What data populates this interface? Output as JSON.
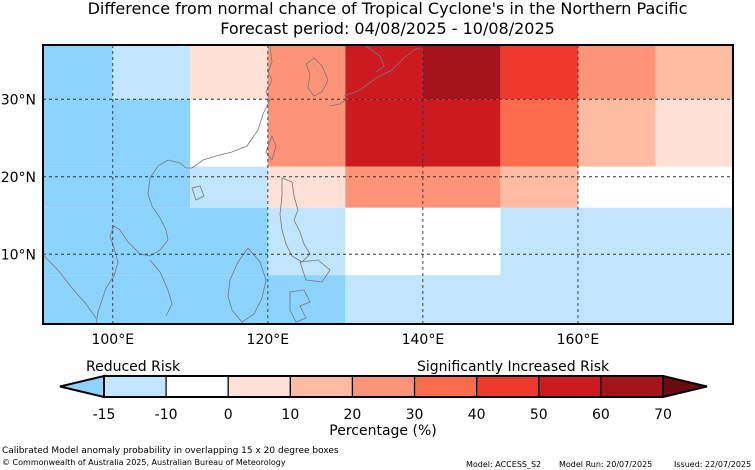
{
  "title": {
    "line1": "Difference from normal chance of Tropical Cyclone's in the Northern Pacific",
    "line2": "Forecast period: 04/08/2025 - 10/08/2025"
  },
  "map": {
    "lat_ticks": [
      "30°N",
      "20°N",
      "10°N"
    ],
    "lon_ticks": [
      "100°E",
      "120°E",
      "140°E",
      "160°E"
    ],
    "grid_cells": [
      {
        "lon": [
          90,
          100
        ],
        "lat": [
          30,
          37
        ],
        "color": "#8dd3ff"
      },
      {
        "lon": [
          100,
          110
        ],
        "lat": [
          30,
          37
        ],
        "color": "#c0e5fc"
      },
      {
        "lon": [
          110,
          120
        ],
        "lat": [
          30,
          37
        ],
        "color": "#ffe0d6"
      },
      {
        "lon": [
          120,
          130
        ],
        "lat": [
          30,
          37
        ],
        "color": "#fd9377"
      },
      {
        "lon": [
          130,
          140
        ],
        "lat": [
          30,
          37
        ],
        "color": "#cc1a20"
      },
      {
        "lon": [
          140,
          150
        ],
        "lat": [
          30,
          37
        ],
        "color": "#a5141a"
      },
      {
        "lon": [
          150,
          160
        ],
        "lat": [
          30,
          37
        ],
        "color": "#ee3a2c"
      },
      {
        "lon": [
          160,
          170
        ],
        "lat": [
          30,
          37
        ],
        "color": "#fd9377"
      },
      {
        "lon": [
          170,
          180
        ],
        "lat": [
          30,
          37
        ],
        "color": "#fdbba1"
      },
      {
        "lon": [
          90,
          110
        ],
        "lat": [
          21.3,
          30
        ],
        "color": "#8dd3ff"
      },
      {
        "lon": [
          110,
          120
        ],
        "lat": [
          21.3,
          30
        ],
        "color": "#ffffff"
      },
      {
        "lon": [
          120,
          130
        ],
        "lat": [
          21.3,
          30
        ],
        "color": "#fd9377"
      },
      {
        "lon": [
          130,
          150
        ],
        "lat": [
          21.3,
          30
        ],
        "color": "#cc1a20"
      },
      {
        "lon": [
          150,
          160
        ],
        "lat": [
          21.3,
          30
        ],
        "color": "#fd6b4d"
      },
      {
        "lon": [
          160,
          170
        ],
        "lat": [
          21.3,
          30
        ],
        "color": "#fdbba1"
      },
      {
        "lon": [
          170,
          180
        ],
        "lat": [
          21.3,
          30
        ],
        "color": "#ffe0d6"
      },
      {
        "lon": [
          90,
          110
        ],
        "lat": [
          16,
          21.3
        ],
        "color": "#8dd3ff"
      },
      {
        "lon": [
          110,
          120
        ],
        "lat": [
          16,
          21.3
        ],
        "color": "#c0e5fc"
      },
      {
        "lon": [
          120,
          130
        ],
        "lat": [
          16,
          21.3
        ],
        "color": "#ffe0d6"
      },
      {
        "lon": [
          130,
          150
        ],
        "lat": [
          16,
          21.3
        ],
        "color": "#fd9377"
      },
      {
        "lon": [
          150,
          160
        ],
        "lat": [
          16,
          21.3
        ],
        "color": "#fdbba1"
      },
      {
        "lon": [
          160,
          180
        ],
        "lat": [
          16,
          21.3
        ],
        "color": "#ffffff"
      },
      {
        "lon": [
          90,
          120
        ],
        "lat": [
          7.3,
          16
        ],
        "color": "#8dd3ff"
      },
      {
        "lon": [
          120,
          130
        ],
        "lat": [
          7.3,
          16
        ],
        "color": "#c0e5fc"
      },
      {
        "lon": [
          130,
          150
        ],
        "lat": [
          7.3,
          16
        ],
        "color": "#ffffff"
      },
      {
        "lon": [
          150,
          180
        ],
        "lat": [
          7.3,
          16
        ],
        "color": "#c0e5fc"
      },
      {
        "lon": [
          90,
          130
        ],
        "lat": [
          0,
          7.3
        ],
        "color": "#8dd3ff"
      },
      {
        "lon": [
          130,
          180
        ],
        "lat": [
          0,
          7.3
        ],
        "color": "#c0e5fc"
      }
    ]
  },
  "legend": {
    "left_label": "Reduced Risk",
    "right_label": "Significantly Increased Risk",
    "tick_labels": [
      "-15",
      "-10",
      "0",
      "10",
      "20",
      "30",
      "40",
      "50",
      "60",
      "70"
    ],
    "colors": [
      "#8dd3ff",
      "#c0e5fc",
      "#ffffff",
      "#ffe0d6",
      "#fdbba1",
      "#fd9377",
      "#fd6b4d",
      "#ee3a2c",
      "#cc1a20",
      "#a5141a",
      "#6b0a10"
    ],
    "unit_label": "Percentage (%)"
  },
  "footer": {
    "note": "Calibrated Model anomaly probability in overlapping 15 x 20 degree boxes",
    "copyright": "© Commonwealth of Australia 2025, Australian Bureau of Meteorology",
    "model": "Model: ACCESS_S2",
    "model_run": "Model Run: 20/07/2025",
    "issued": "Issued: 22/07/2025"
  }
}
